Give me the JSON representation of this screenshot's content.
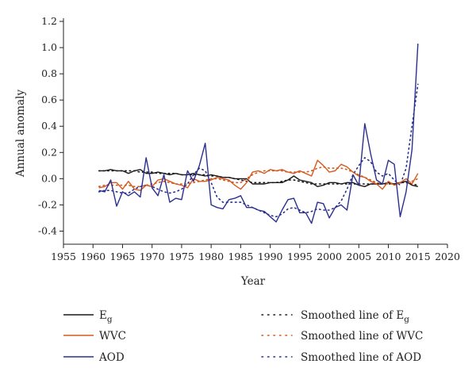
{
  "chart_data": {
    "type": "line",
    "title": "",
    "xlabel": "Year",
    "ylabel": "Annual anomaly",
    "xlim": [
      1955,
      2020
    ],
    "ylim": [
      -0.5,
      1.2
    ],
    "x_ticks": [
      1955,
      1960,
      1965,
      1970,
      1975,
      1980,
      1985,
      1990,
      1995,
      2000,
      2005,
      2010,
      2015,
      2020
    ],
    "y_ticks": [
      -0.4,
      -0.2,
      0.0,
      0.2,
      0.4,
      0.6,
      0.8,
      1.0,
      1.2
    ],
    "y_tick_labels": [
      "-0.4",
      "-0.2",
      "0.0",
      "0.2",
      "0.4",
      "0.6",
      "0.8",
      "1.0",
      "1.2"
    ],
    "grid": false,
    "legend_position": "bottom",
    "x": [
      1961,
      1962,
      1963,
      1964,
      1965,
      1966,
      1967,
      1968,
      1969,
      1970,
      1971,
      1972,
      1973,
      1974,
      1975,
      1976,
      1977,
      1978,
      1979,
      1980,
      1981,
      1982,
      1983,
      1984,
      1985,
      1986,
      1987,
      1988,
      1989,
      1990,
      1991,
      1992,
      1993,
      1994,
      1995,
      1996,
      1997,
      1998,
      1999,
      2000,
      2001,
      2002,
      2003,
      2004,
      2005,
      2006,
      2007,
      2008,
      2009,
      2010,
      2011,
      2012,
      2013,
      2014,
      2015
    ],
    "series": [
      {
        "name": "E",
        "name_subscript": "g",
        "color": "#1a1a1a",
        "style": "solid",
        "values": [
          0.06,
          0.06,
          0.07,
          0.06,
          0.06,
          0.04,
          0.06,
          0.07,
          0.04,
          0.04,
          0.05,
          0.04,
          0.03,
          0.04,
          0.03,
          0.03,
          0.04,
          0.03,
          0.02,
          0.03,
          0.02,
          0.01,
          0.01,
          0.0,
          0.0,
          0.0,
          -0.04,
          -0.04,
          -0.04,
          -0.03,
          -0.03,
          -0.03,
          -0.01,
          0.02,
          -0.01,
          -0.02,
          -0.03,
          -0.06,
          -0.05,
          -0.03,
          -0.03,
          -0.04,
          -0.03,
          -0.03,
          -0.05,
          -0.06,
          -0.04,
          -0.04,
          -0.04,
          -0.03,
          -0.04,
          -0.03,
          -0.02,
          -0.05,
          -0.06
        ]
      },
      {
        "name": "WVC",
        "color": "#d45a1f",
        "style": "solid",
        "values": [
          -0.07,
          -0.06,
          -0.03,
          -0.03,
          -0.08,
          -0.02,
          -0.08,
          -0.09,
          -0.05,
          -0.06,
          -0.01,
          0.0,
          -0.02,
          -0.04,
          -0.05,
          -0.07,
          0.0,
          -0.02,
          -0.02,
          -0.01,
          0.01,
          0.0,
          -0.01,
          -0.05,
          -0.08,
          -0.03,
          0.05,
          0.06,
          0.04,
          0.07,
          0.06,
          0.07,
          0.05,
          0.04,
          0.06,
          0.04,
          0.02,
          0.14,
          0.1,
          0.05,
          0.06,
          0.11,
          0.09,
          0.05,
          0.02,
          0.01,
          -0.02,
          -0.04,
          -0.08,
          -0.02,
          -0.05,
          -0.03,
          0.0,
          -0.04,
          0.04
        ]
      },
      {
        "name": "AOD",
        "color": "#2b2f8f",
        "style": "solid",
        "values": [
          -0.09,
          -0.1,
          -0.01,
          -0.21,
          -0.1,
          -0.13,
          -0.1,
          -0.14,
          0.16,
          -0.07,
          -0.13,
          0.03,
          -0.18,
          -0.15,
          -0.16,
          0.06,
          -0.02,
          0.1,
          0.27,
          -0.2,
          -0.22,
          -0.23,
          -0.16,
          -0.15,
          -0.13,
          -0.22,
          -0.22,
          -0.24,
          -0.25,
          -0.29,
          -0.33,
          -0.24,
          -0.16,
          -0.15,
          -0.26,
          -0.26,
          -0.34,
          -0.18,
          -0.19,
          -0.3,
          -0.22,
          -0.2,
          -0.24,
          0.03,
          -0.05,
          0.42,
          0.19,
          -0.01,
          -0.04,
          0.14,
          0.11,
          -0.29,
          -0.1,
          0.22,
          1.03
        ]
      },
      {
        "name": "Smoothed line of E",
        "name_subscript": "g",
        "color": "#1a1a1a",
        "style": "dotted",
        "values": [
          0.06,
          0.06,
          0.06,
          0.06,
          0.06,
          0.06,
          0.06,
          0.05,
          0.05,
          0.05,
          0.04,
          0.04,
          0.04,
          0.04,
          0.03,
          0.03,
          0.03,
          0.03,
          0.03,
          0.02,
          0.02,
          0.01,
          0.01,
          0.0,
          -0.01,
          -0.02,
          -0.03,
          -0.03,
          -0.03,
          -0.03,
          -0.03,
          -0.02,
          -0.01,
          -0.01,
          -0.02,
          -0.03,
          -0.04,
          -0.04,
          -0.04,
          -0.04,
          -0.04,
          -0.04,
          -0.04,
          -0.04,
          -0.04,
          -0.04,
          -0.04,
          -0.04,
          -0.04,
          -0.04,
          -0.04,
          -0.03,
          -0.03,
          -0.04,
          -0.05
        ]
      },
      {
        "name": "Smoothed line of WVC",
        "color": "#d45a1f",
        "style": "dotted",
        "values": [
          -0.06,
          -0.05,
          -0.05,
          -0.05,
          -0.05,
          -0.05,
          -0.06,
          -0.06,
          -0.05,
          -0.04,
          -0.03,
          -0.02,
          -0.03,
          -0.04,
          -0.04,
          -0.04,
          -0.03,
          -0.02,
          -0.01,
          0.0,
          0.0,
          -0.01,
          -0.02,
          -0.03,
          -0.03,
          0.0,
          0.03,
          0.05,
          0.06,
          0.06,
          0.06,
          0.06,
          0.05,
          0.05,
          0.05,
          0.05,
          0.06,
          0.08,
          0.09,
          0.08,
          0.08,
          0.08,
          0.07,
          0.05,
          0.03,
          0.01,
          -0.01,
          -0.03,
          -0.04,
          -0.04,
          -0.04,
          -0.03,
          -0.02,
          -0.02,
          0.0
        ]
      },
      {
        "name": "Smoothed line of AOD",
        "color": "#2b2f8f",
        "style": "dotted",
        "values": [
          -0.1,
          -0.09,
          -0.09,
          -0.1,
          -0.11,
          -0.11,
          -0.08,
          -0.06,
          -0.05,
          -0.06,
          -0.08,
          -0.1,
          -0.11,
          -0.1,
          -0.08,
          -0.04,
          0.03,
          0.08,
          0.06,
          -0.03,
          -0.14,
          -0.18,
          -0.18,
          -0.18,
          -0.18,
          -0.2,
          -0.22,
          -0.24,
          -0.26,
          -0.28,
          -0.29,
          -0.27,
          -0.23,
          -0.22,
          -0.24,
          -0.26,
          -0.25,
          -0.23,
          -0.24,
          -0.24,
          -0.22,
          -0.17,
          -0.08,
          0.03,
          0.1,
          0.16,
          0.13,
          0.05,
          0.02,
          0.04,
          -0.01,
          -0.05,
          0.08,
          0.4,
          0.72
        ]
      }
    ]
  }
}
